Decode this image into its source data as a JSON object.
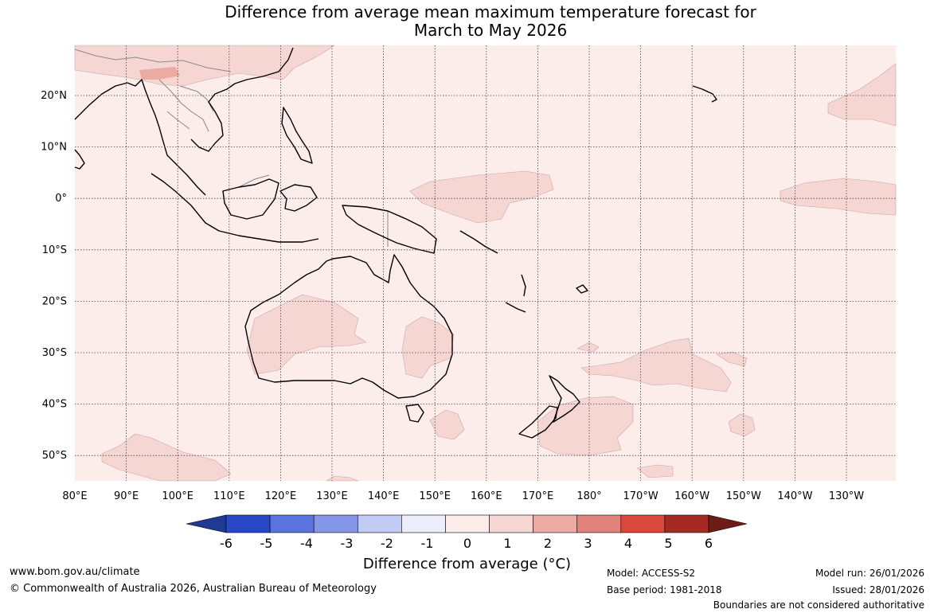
{
  "title_line1": "Difference from average mean maximum temperature forecast for",
  "title_line2": "March to May 2026",
  "lat_labels": [
    "20°N",
    "10°N",
    "0°",
    "10°S",
    "20°S",
    "30°S",
    "40°S",
    "50°S"
  ],
  "lon_labels": [
    "80°E",
    "90°E",
    "100°E",
    "110°E",
    "120°E",
    "130°E",
    "140°E",
    "150°E",
    "160°E",
    "170°E",
    "180°",
    "170°W",
    "160°W",
    "150°W",
    "140°W",
    "130°W"
  ],
  "colorbar": {
    "ticks": [
      "-6",
      "-5",
      "-4",
      "-3",
      "-2",
      "-1",
      "0",
      "1",
      "2",
      "3",
      "4",
      "5",
      "6"
    ],
    "colors": [
      "#1f3a93",
      "#2a47c8",
      "#5a73e0",
      "#8597e8",
      "#c2cbf3",
      "#eceefb",
      "#fcecea",
      "#f6d6d3",
      "#edaaa3",
      "#e3827a",
      "#d9473d",
      "#a52a24",
      "#6e1d16"
    ],
    "title": "Difference from average (°C)"
  },
  "footer": {
    "website": "www.bom.gov.au/climate",
    "copyright": "© Commonwealth of Australia 2026, Australian Bureau of Meteorology",
    "model": "Model: ACCESS-S2",
    "base_period": "Base period: 1981-2018",
    "model_run": "Model run: 26/01/2026",
    "issued": "Issued: 28/01/2026",
    "boundaries": "Boundaries are not considered authoritative"
  }
}
